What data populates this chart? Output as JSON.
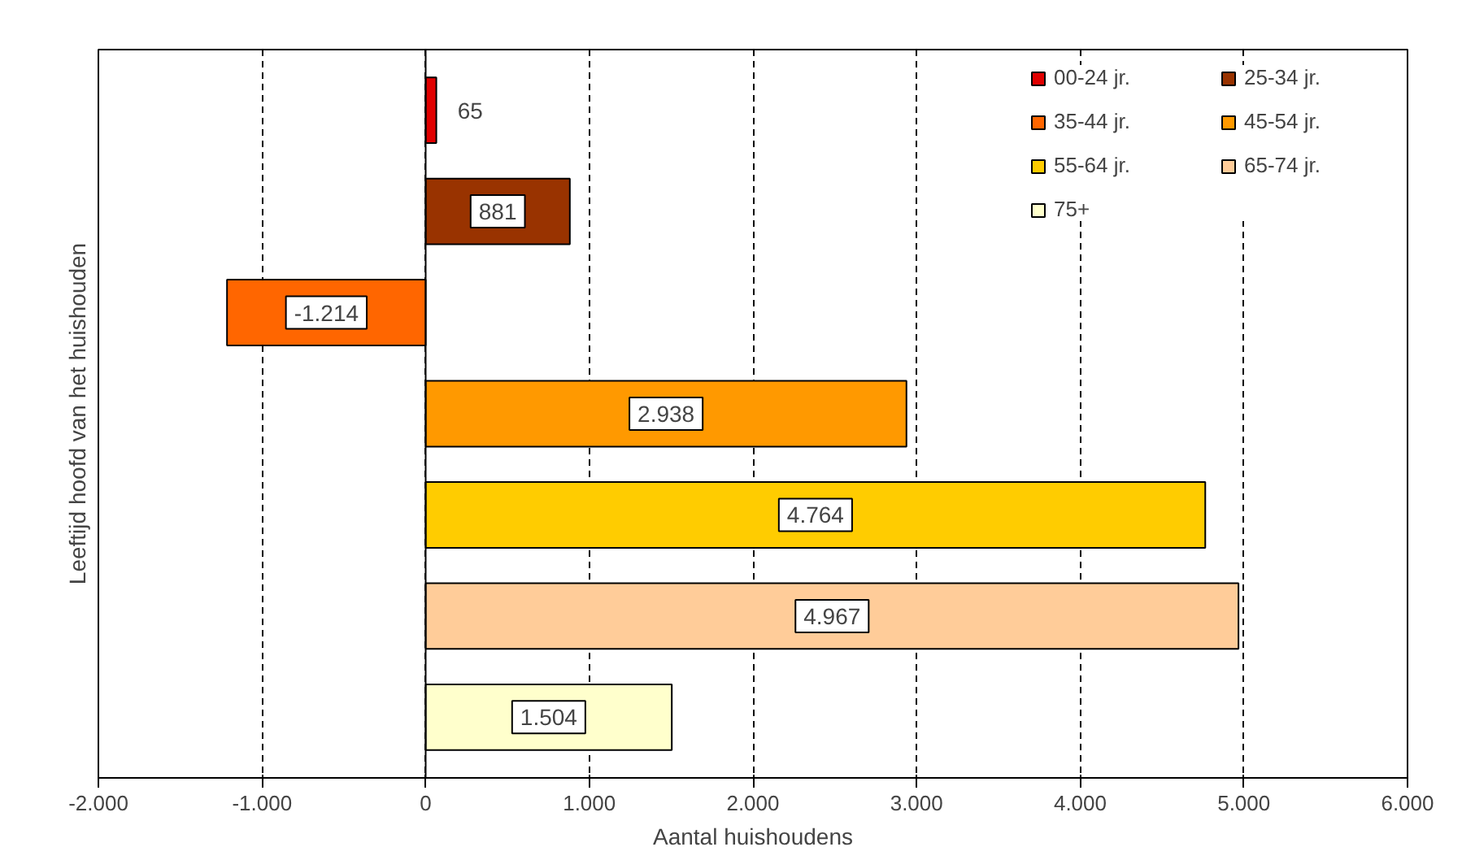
{
  "chart_data": {
    "type": "bar",
    "orientation": "horizontal",
    "xlabel": "Aantal huishoudens",
    "ylabel": "Leeftijd hoofd van het huishouden",
    "categories": [
      null,
      null,
      null,
      null,
      null,
      null,
      null
    ],
    "series": [
      {
        "name": "00-24 jr.",
        "color": "#e00000",
        "values": [
          65,
          null,
          null,
          null,
          null,
          null,
          null
        ],
        "value_labels": [
          "65",
          null,
          null,
          null,
          null,
          null,
          null
        ]
      },
      {
        "name": "25-34 jr.",
        "color": "#993300",
        "values": [
          null,
          881,
          null,
          null,
          null,
          null,
          null
        ],
        "value_labels": [
          null,
          "881",
          null,
          null,
          null,
          null,
          null
        ]
      },
      {
        "name": "35-44 jr.",
        "color": "#ff6600",
        "values": [
          null,
          null,
          -1214,
          null,
          null,
          null,
          null
        ],
        "value_labels": [
          null,
          null,
          "-1.214",
          null,
          null,
          null,
          null
        ]
      },
      {
        "name": "45-54 jr.",
        "color": "#ff9900",
        "values": [
          null,
          null,
          null,
          2938,
          null,
          null,
          null
        ],
        "value_labels": [
          null,
          null,
          null,
          "2.938",
          null,
          null,
          null
        ]
      },
      {
        "name": "55-64 jr.",
        "color": "#ffcc00",
        "values": [
          null,
          null,
          null,
          null,
          4764,
          null,
          null
        ],
        "value_labels": [
          null,
          null,
          null,
          null,
          "4.764",
          null,
          null
        ]
      },
      {
        "name": "65-74 jr.",
        "color": "#ffcc99",
        "values": [
          null,
          null,
          null,
          null,
          null,
          4967,
          null
        ],
        "value_labels": [
          null,
          null,
          null,
          null,
          null,
          "4.967",
          null
        ]
      },
      {
        "name": "75+",
        "color": "#ffffcc",
        "values": [
          null,
          null,
          null,
          null,
          null,
          null,
          1504
        ],
        "value_labels": [
          null,
          null,
          null,
          null,
          null,
          null,
          "1.504"
        ]
      }
    ],
    "xlim": [
      -2000,
      6000
    ],
    "xticks": [
      {
        "value": -2000,
        "label": "-2.000"
      },
      {
        "value": -1000,
        "label": "-1.000"
      },
      0,
      {
        "value": 1000,
        "label": "1.000"
      },
      {
        "value": 2000,
        "label": "2.000"
      },
      {
        "value": 3000,
        "label": "3.000"
      },
      {
        "value": 4000,
        "label": "4.000"
      },
      {
        "value": 5000,
        "label": "5.000"
      },
      {
        "value": 6000,
        "label": "6.000"
      }
    ],
    "tick_labels": "x",
    "grid": "x",
    "legend": "top right"
  }
}
